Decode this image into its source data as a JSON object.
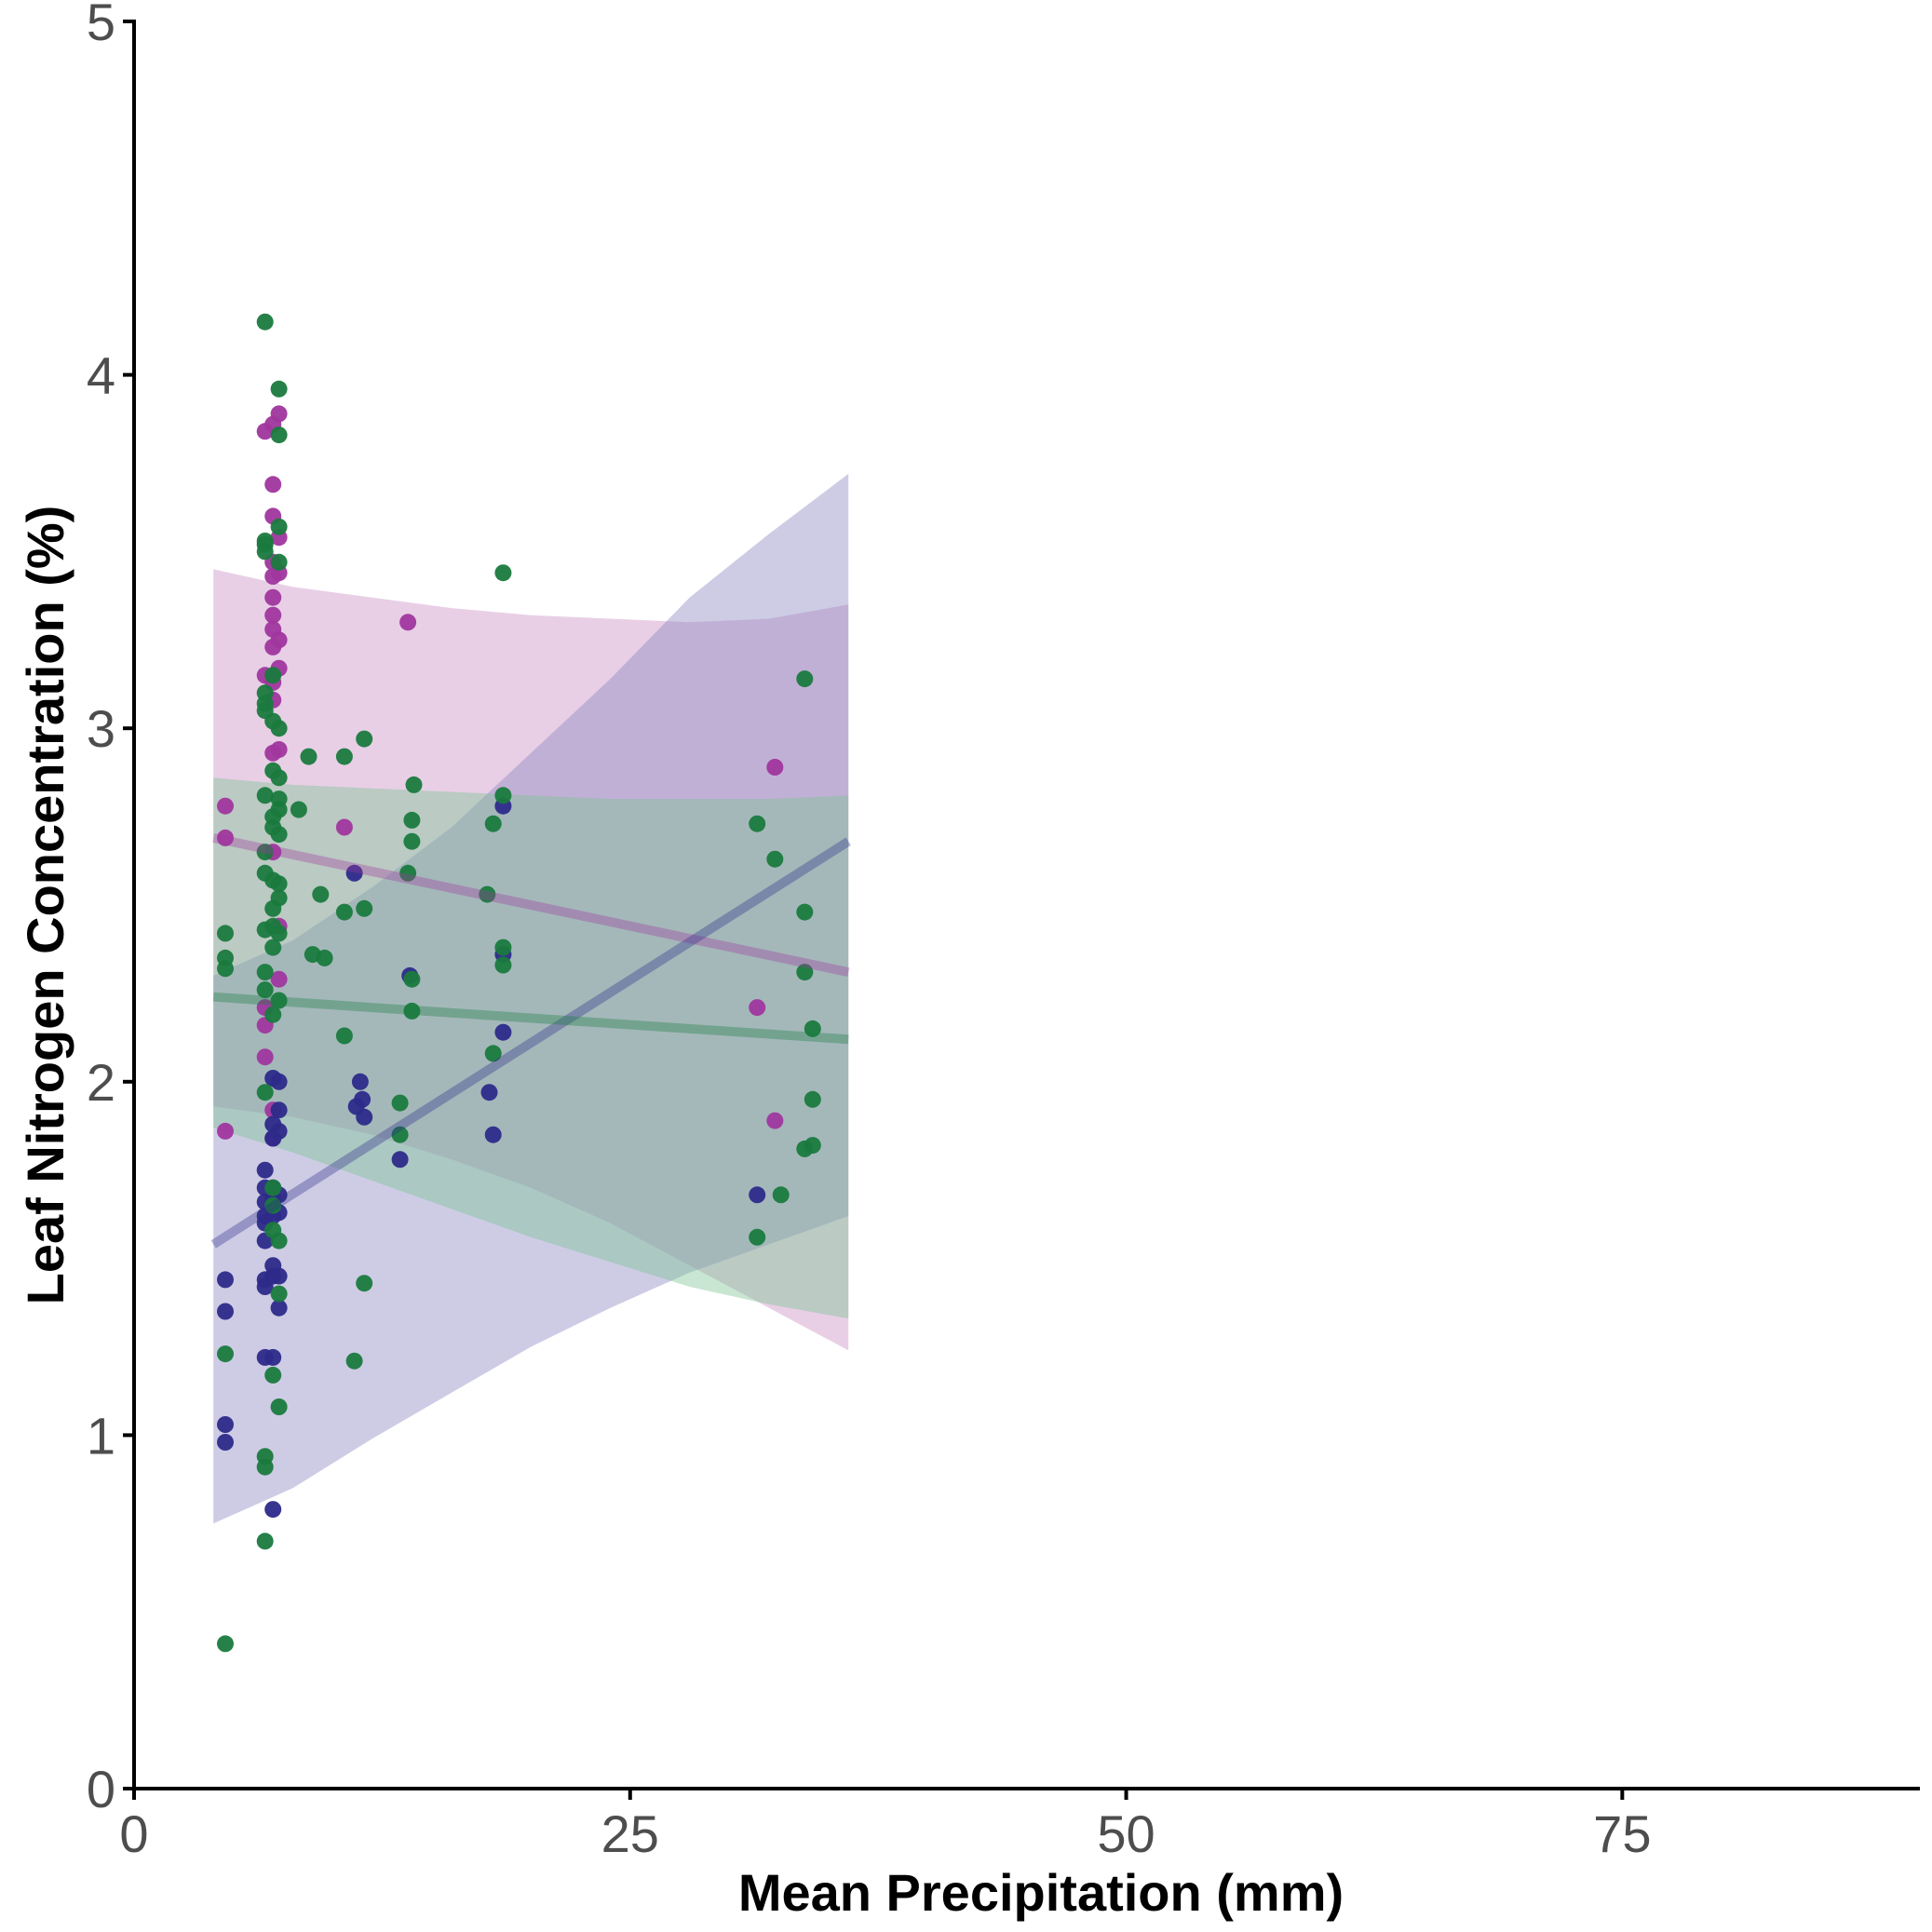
{
  "chart_data": {
    "type": "scatter",
    "title": "",
    "xlabel": "Mean Precipitation (mm)",
    "ylabel": "Leaf Nitrogen Concentration (%)",
    "xlim": [
      0,
      90
    ],
    "ylim": [
      0,
      5
    ],
    "x_ticks": [
      0,
      25,
      50,
      75
    ],
    "x_tick_labels": [
      "0",
      "25",
      "50",
      "75"
    ],
    "y_ticks": [
      0,
      1,
      2,
      3,
      4,
      5
    ],
    "y_tick_labels": [
      "0",
      "1",
      "2",
      "3",
      "4",
      "5"
    ],
    "grid": false,
    "legend": "none",
    "series": [
      {
        "color": "#a0369e",
        "band_color": "#c88cc4",
        "points": [
          [
            4.6,
            2.78
          ],
          [
            4.6,
            2.69
          ],
          [
            4.6,
            1.86
          ],
          [
            6.6,
            3.84
          ],
          [
            6.6,
            3.15
          ],
          [
            6.6,
            2.16
          ],
          [
            6.6,
            2.07
          ],
          [
            6.6,
            2.21
          ],
          [
            7.0,
            3.86
          ],
          [
            7.0,
            3.69
          ],
          [
            7.0,
            3.6
          ],
          [
            7.0,
            3.47
          ],
          [
            7.0,
            3.43
          ],
          [
            7.0,
            3.37
          ],
          [
            7.0,
            3.32
          ],
          [
            7.0,
            3.28
          ],
          [
            7.0,
            3.23
          ],
          [
            7.0,
            3.13
          ],
          [
            7.0,
            3.08
          ],
          [
            7.0,
            2.93
          ],
          [
            7.0,
            2.65
          ],
          [
            7.0,
            1.92
          ],
          [
            7.0,
            1.84
          ],
          [
            7.3,
            3.89
          ],
          [
            7.3,
            3.54
          ],
          [
            7.3,
            3.44
          ],
          [
            7.3,
            3.25
          ],
          [
            7.3,
            3.17
          ],
          [
            7.3,
            2.94
          ],
          [
            7.3,
            2.44
          ],
          [
            7.3,
            2.29
          ],
          [
            10.6,
            2.72
          ],
          [
            13.8,
            3.3
          ],
          [
            31.4,
            2.21
          ],
          [
            32.3,
            2.89
          ],
          [
            32.3,
            1.89
          ]
        ],
        "fit": {
          "x": [
            4.0,
            36.0
          ],
          "y": [
            2.69,
            2.31
          ]
        },
        "band": {
          "x": [
            4.0,
            8.0,
            12.0,
            16.0,
            20.0,
            24.0,
            28.0,
            32.0,
            36.0
          ],
          "upper": [
            3.45,
            3.4,
            3.37,
            3.34,
            3.32,
            3.31,
            3.3,
            3.31,
            3.35
          ],
          "lower": [
            1.93,
            1.9,
            1.85,
            1.78,
            1.7,
            1.6,
            1.48,
            1.36,
            1.24
          ]
        }
      },
      {
        "color": "#2d2a8a",
        "band_color": "#8a86c0",
        "points": [
          [
            4.6,
            1.44
          ],
          [
            4.6,
            1.35
          ],
          [
            4.6,
            1.03
          ],
          [
            4.6,
            0.98
          ],
          [
            6.6,
            1.75
          ],
          [
            6.6,
            1.7
          ],
          [
            6.6,
            1.66
          ],
          [
            6.6,
            1.62
          ],
          [
            6.6,
            1.6
          ],
          [
            6.6,
            1.55
          ],
          [
            6.6,
            1.44
          ],
          [
            6.6,
            1.42
          ],
          [
            6.6,
            1.22
          ],
          [
            7.0,
            2.01
          ],
          [
            7.0,
            1.88
          ],
          [
            7.0,
            1.84
          ],
          [
            7.0,
            1.7
          ],
          [
            7.0,
            1.67
          ],
          [
            7.0,
            1.62
          ],
          [
            7.0,
            1.48
          ],
          [
            7.0,
            1.45
          ],
          [
            7.0,
            1.22
          ],
          [
            7.0,
            0.79
          ],
          [
            7.3,
            2.0
          ],
          [
            7.3,
            1.92
          ],
          [
            7.3,
            1.86
          ],
          [
            7.3,
            1.68
          ],
          [
            7.3,
            1.63
          ],
          [
            7.3,
            1.45
          ],
          [
            7.3,
            1.36
          ],
          [
            11.1,
            2.59
          ],
          [
            11.2,
            1.93
          ],
          [
            11.4,
            2.0
          ],
          [
            11.5,
            1.95
          ],
          [
            11.6,
            1.9
          ],
          [
            13.4,
            1.78
          ],
          [
            13.9,
            2.3
          ],
          [
            17.9,
            1.97
          ],
          [
            18.1,
            1.85
          ],
          [
            18.6,
            2.78
          ],
          [
            18.6,
            2.36
          ],
          [
            18.6,
            2.14
          ],
          [
            31.4,
            1.68
          ]
        ],
        "fit": {
          "x": [
            4.0,
            36.0
          ],
          "y": [
            1.54,
            2.68
          ]
        },
        "band": {
          "x": [
            4.0,
            8.0,
            12.0,
            16.0,
            20.0,
            24.0,
            28.0,
            32.0,
            36.0
          ],
          "upper": [
            2.3,
            2.4,
            2.55,
            2.72,
            2.93,
            3.14,
            3.37,
            3.55,
            3.72
          ],
          "lower": [
            0.75,
            0.85,
            0.99,
            1.12,
            1.25,
            1.36,
            1.46,
            1.54,
            1.62
          ]
        }
      },
      {
        "color": "#1a7a3e",
        "band_color": "#7cc494",
        "points": [
          [
            4.6,
            2.42
          ],
          [
            4.6,
            2.35
          ],
          [
            4.6,
            2.32
          ],
          [
            4.6,
            1.23
          ],
          [
            4.6,
            0.41
          ],
          [
            6.6,
            4.15
          ],
          [
            6.6,
            3.53
          ],
          [
            6.6,
            3.52
          ],
          [
            6.6,
            3.5
          ],
          [
            6.6,
            3.1
          ],
          [
            6.6,
            3.07
          ],
          [
            6.6,
            3.05
          ],
          [
            6.6,
            2.81
          ],
          [
            6.6,
            2.65
          ],
          [
            6.6,
            2.59
          ],
          [
            6.6,
            2.43
          ],
          [
            6.6,
            2.31
          ],
          [
            6.6,
            2.26
          ],
          [
            6.6,
            1.97
          ],
          [
            6.6,
            0.94
          ],
          [
            6.6,
            0.91
          ],
          [
            6.6,
            0.7
          ],
          [
            7.0,
            3.15
          ],
          [
            7.0,
            3.02
          ],
          [
            7.0,
            2.88
          ],
          [
            7.0,
            2.75
          ],
          [
            7.0,
            2.72
          ],
          [
            7.0,
            2.57
          ],
          [
            7.0,
            2.49
          ],
          [
            7.0,
            2.44
          ],
          [
            7.0,
            2.38
          ],
          [
            7.0,
            2.19
          ],
          [
            7.0,
            1.7
          ],
          [
            7.0,
            1.65
          ],
          [
            7.0,
            1.58
          ],
          [
            7.0,
            1.17
          ],
          [
            7.3,
            3.96
          ],
          [
            7.3,
            3.83
          ],
          [
            7.3,
            3.57
          ],
          [
            7.3,
            3.47
          ],
          [
            7.3,
            3.0
          ],
          [
            7.3,
            2.86
          ],
          [
            7.3,
            2.8
          ],
          [
            7.3,
            2.77
          ],
          [
            7.3,
            2.7
          ],
          [
            7.3,
            2.56
          ],
          [
            7.3,
            2.52
          ],
          [
            7.3,
            2.42
          ],
          [
            7.3,
            2.23
          ],
          [
            7.3,
            1.55
          ],
          [
            7.3,
            1.4
          ],
          [
            7.3,
            1.08
          ],
          [
            8.3,
            2.77
          ],
          [
            8.8,
            2.92
          ],
          [
            9.0,
            2.36
          ],
          [
            9.4,
            2.53
          ],
          [
            9.6,
            2.35
          ],
          [
            10.6,
            2.92
          ],
          [
            10.6,
            2.48
          ],
          [
            10.6,
            2.13
          ],
          [
            11.1,
            1.21
          ],
          [
            11.6,
            2.97
          ],
          [
            11.6,
            2.49
          ],
          [
            11.6,
            1.43
          ],
          [
            13.4,
            1.94
          ],
          [
            13.4,
            1.85
          ],
          [
            13.8,
            2.59
          ],
          [
            14.0,
            2.74
          ],
          [
            14.0,
            2.68
          ],
          [
            14.0,
            2.2
          ],
          [
            14.0,
            2.29
          ],
          [
            14.1,
            2.84
          ],
          [
            17.8,
            2.53
          ],
          [
            18.1,
            2.73
          ],
          [
            18.1,
            2.08
          ],
          [
            18.6,
            3.44
          ],
          [
            18.6,
            2.81
          ],
          [
            18.6,
            2.38
          ],
          [
            18.6,
            2.33
          ],
          [
            31.4,
            2.73
          ],
          [
            31.4,
            1.56
          ],
          [
            32.3,
            2.63
          ],
          [
            32.6,
            1.68
          ],
          [
            33.8,
            3.14
          ],
          [
            33.8,
            2.48
          ],
          [
            33.8,
            2.31
          ],
          [
            33.8,
            1.81
          ],
          [
            34.2,
            2.15
          ],
          [
            34.2,
            1.95
          ],
          [
            34.2,
            1.82
          ]
        ],
        "fit": {
          "x": [
            4.0,
            36.0
          ],
          "y": [
            2.24,
            2.12
          ]
        },
        "band": {
          "x": [
            4.0,
            8.0,
            12.0,
            16.0,
            20.0,
            24.0,
            28.0,
            32.0,
            36.0
          ],
          "upper": [
            2.86,
            2.84,
            2.83,
            2.82,
            2.81,
            2.8,
            2.8,
            2.8,
            2.81
          ],
          "lower": [
            1.87,
            1.8,
            1.72,
            1.64,
            1.56,
            1.49,
            1.42,
            1.37,
            1.33
          ]
        }
      }
    ]
  }
}
